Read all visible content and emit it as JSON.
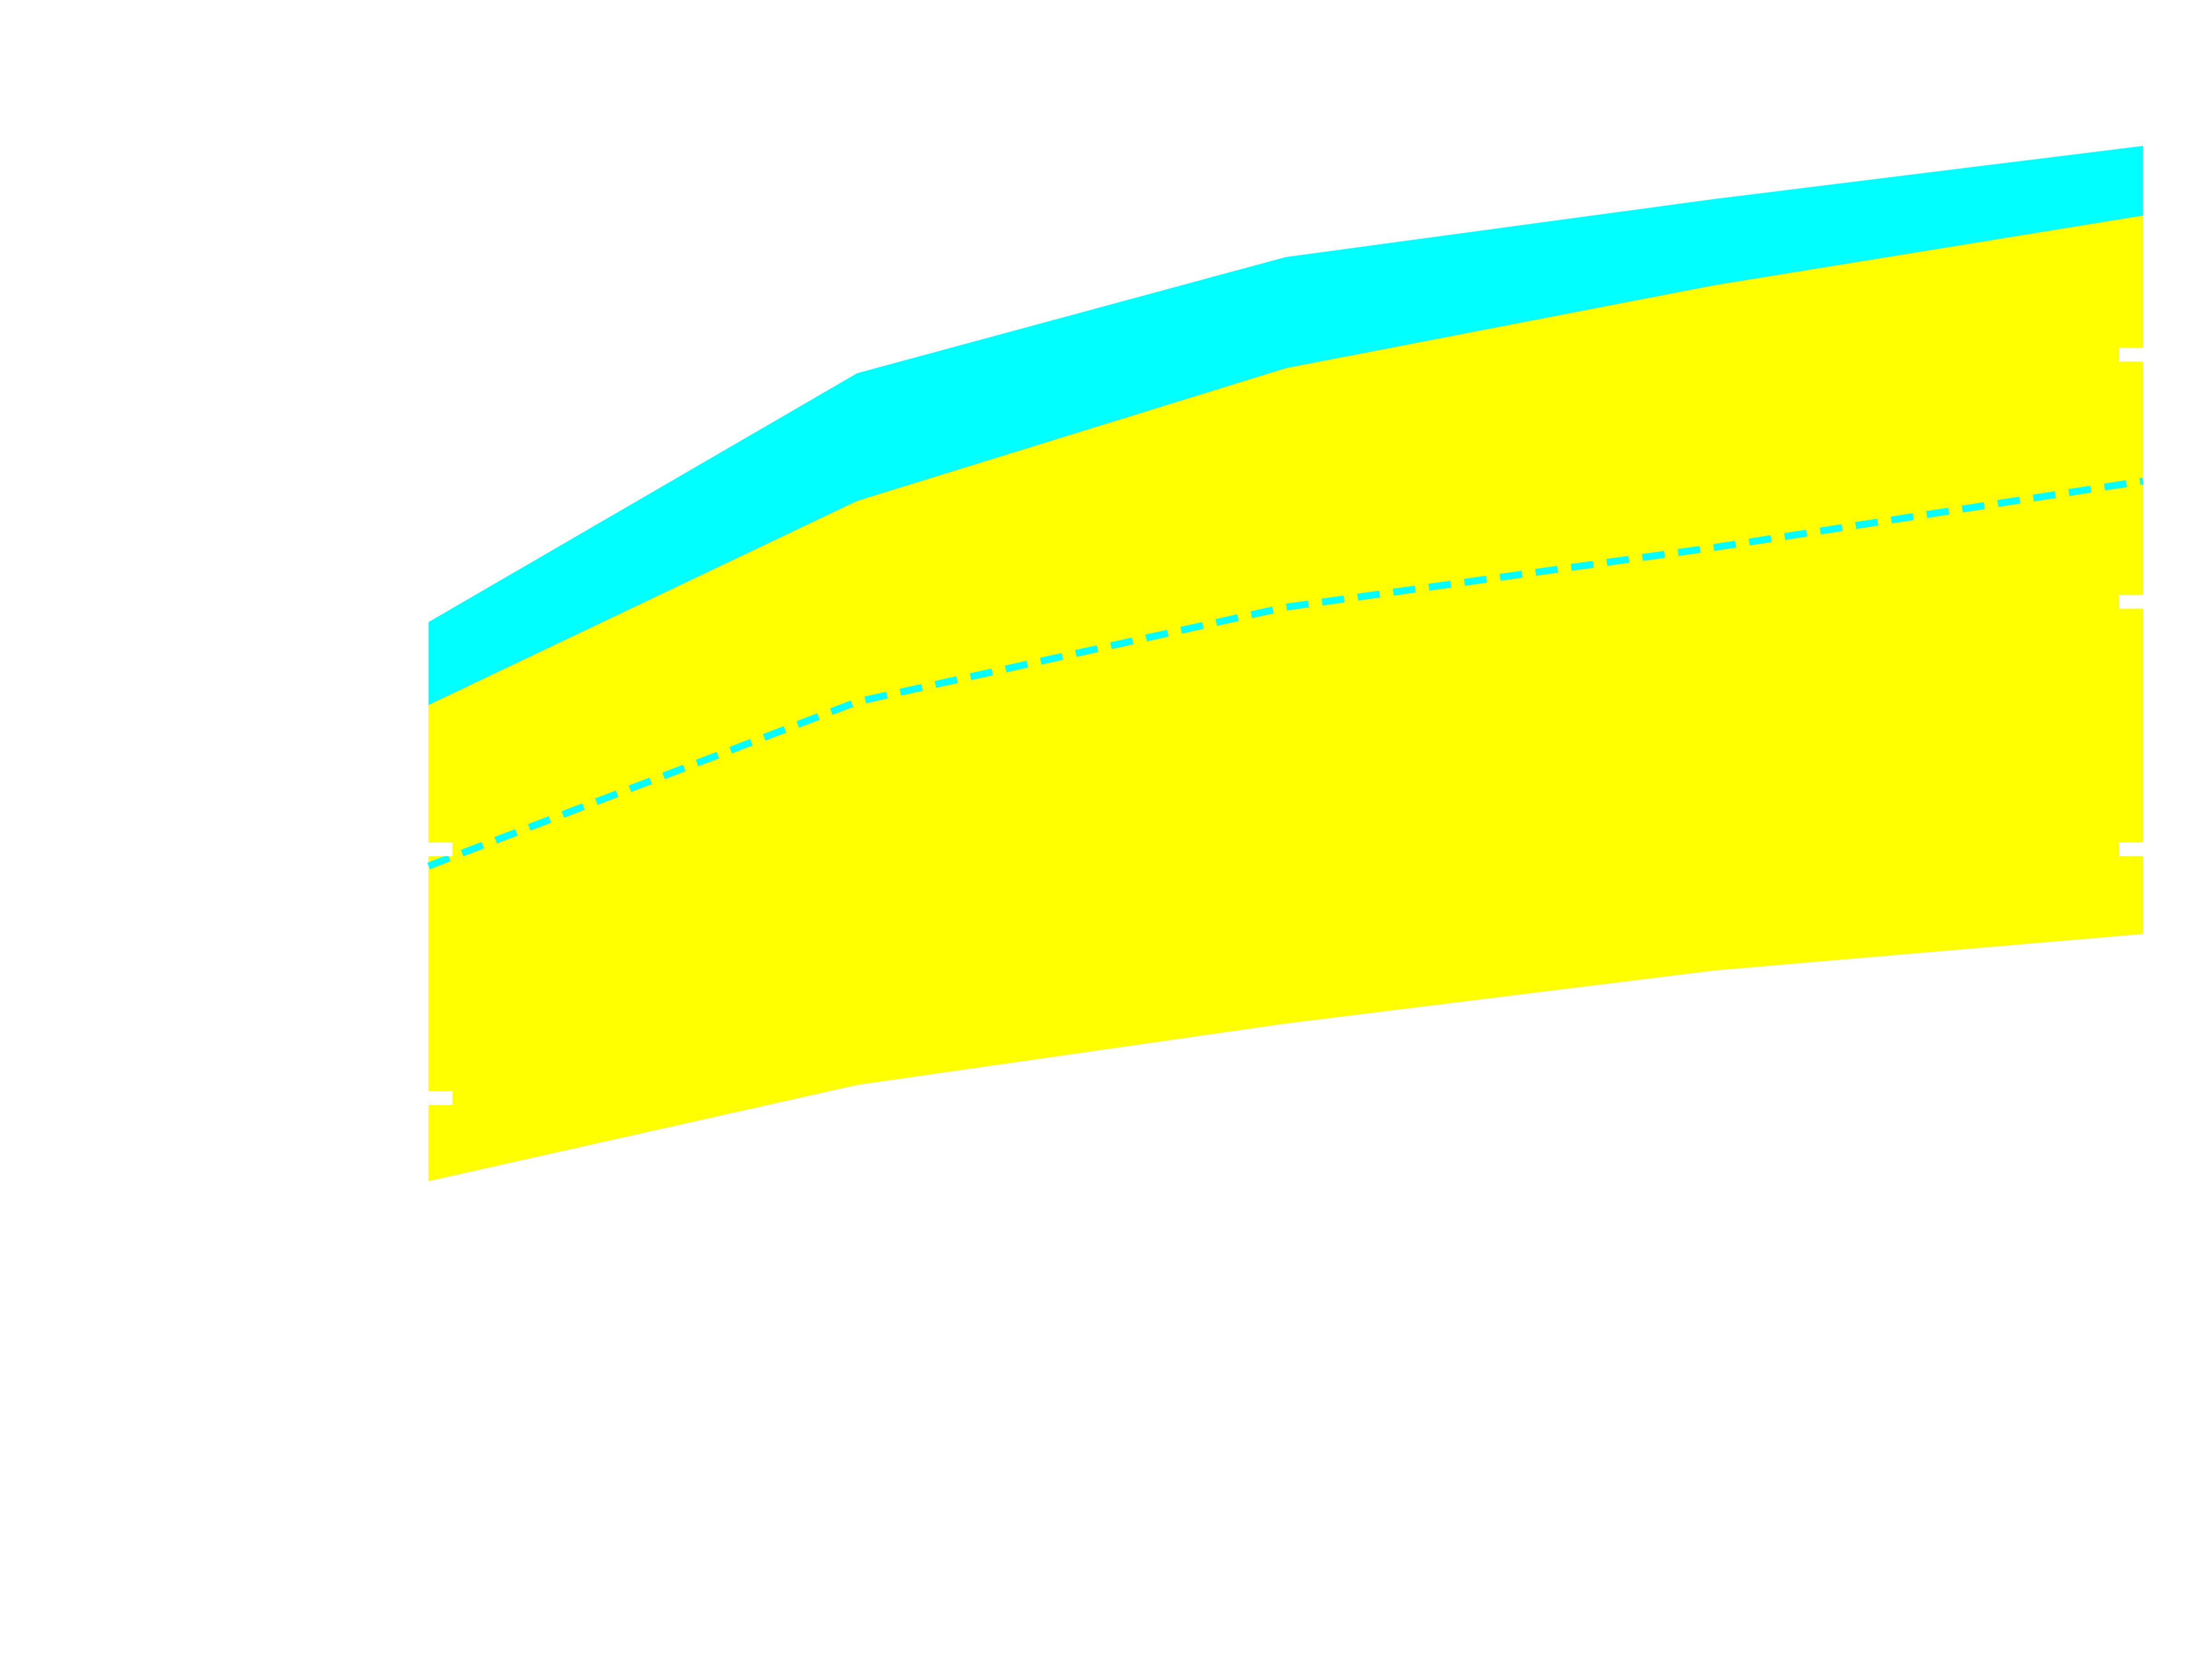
{
  "chart_data": {
    "type": "area",
    "x": [
      1,
      2,
      3,
      4,
      5
    ],
    "xlim": [
      1,
      5
    ],
    "ylim": [
      0,
      1
    ],
    "grid": false,
    "legend": "none",
    "series": [
      {
        "kind": "band",
        "color": "#00ffff",
        "lower": [
          0.575,
          0.698,
          0.778,
          0.828,
          0.87
        ],
        "upper": [
          0.625,
          0.775,
          0.845,
          0.88,
          0.912
        ]
      },
      {
        "kind": "band",
        "color": "#ffff00",
        "lower": [
          0.288,
          0.346,
          0.383,
          0.415,
          0.437
        ],
        "upper": [
          0.575,
          0.698,
          0.778,
          0.828,
          0.87
        ]
      },
      {
        "kind": "line",
        "color": "#00ffff",
        "style": "dashed",
        "values": [
          0.478,
          0.577,
          0.634,
          0.67,
          0.71
        ]
      }
    ],
    "tick_colors": "#ffffff"
  }
}
